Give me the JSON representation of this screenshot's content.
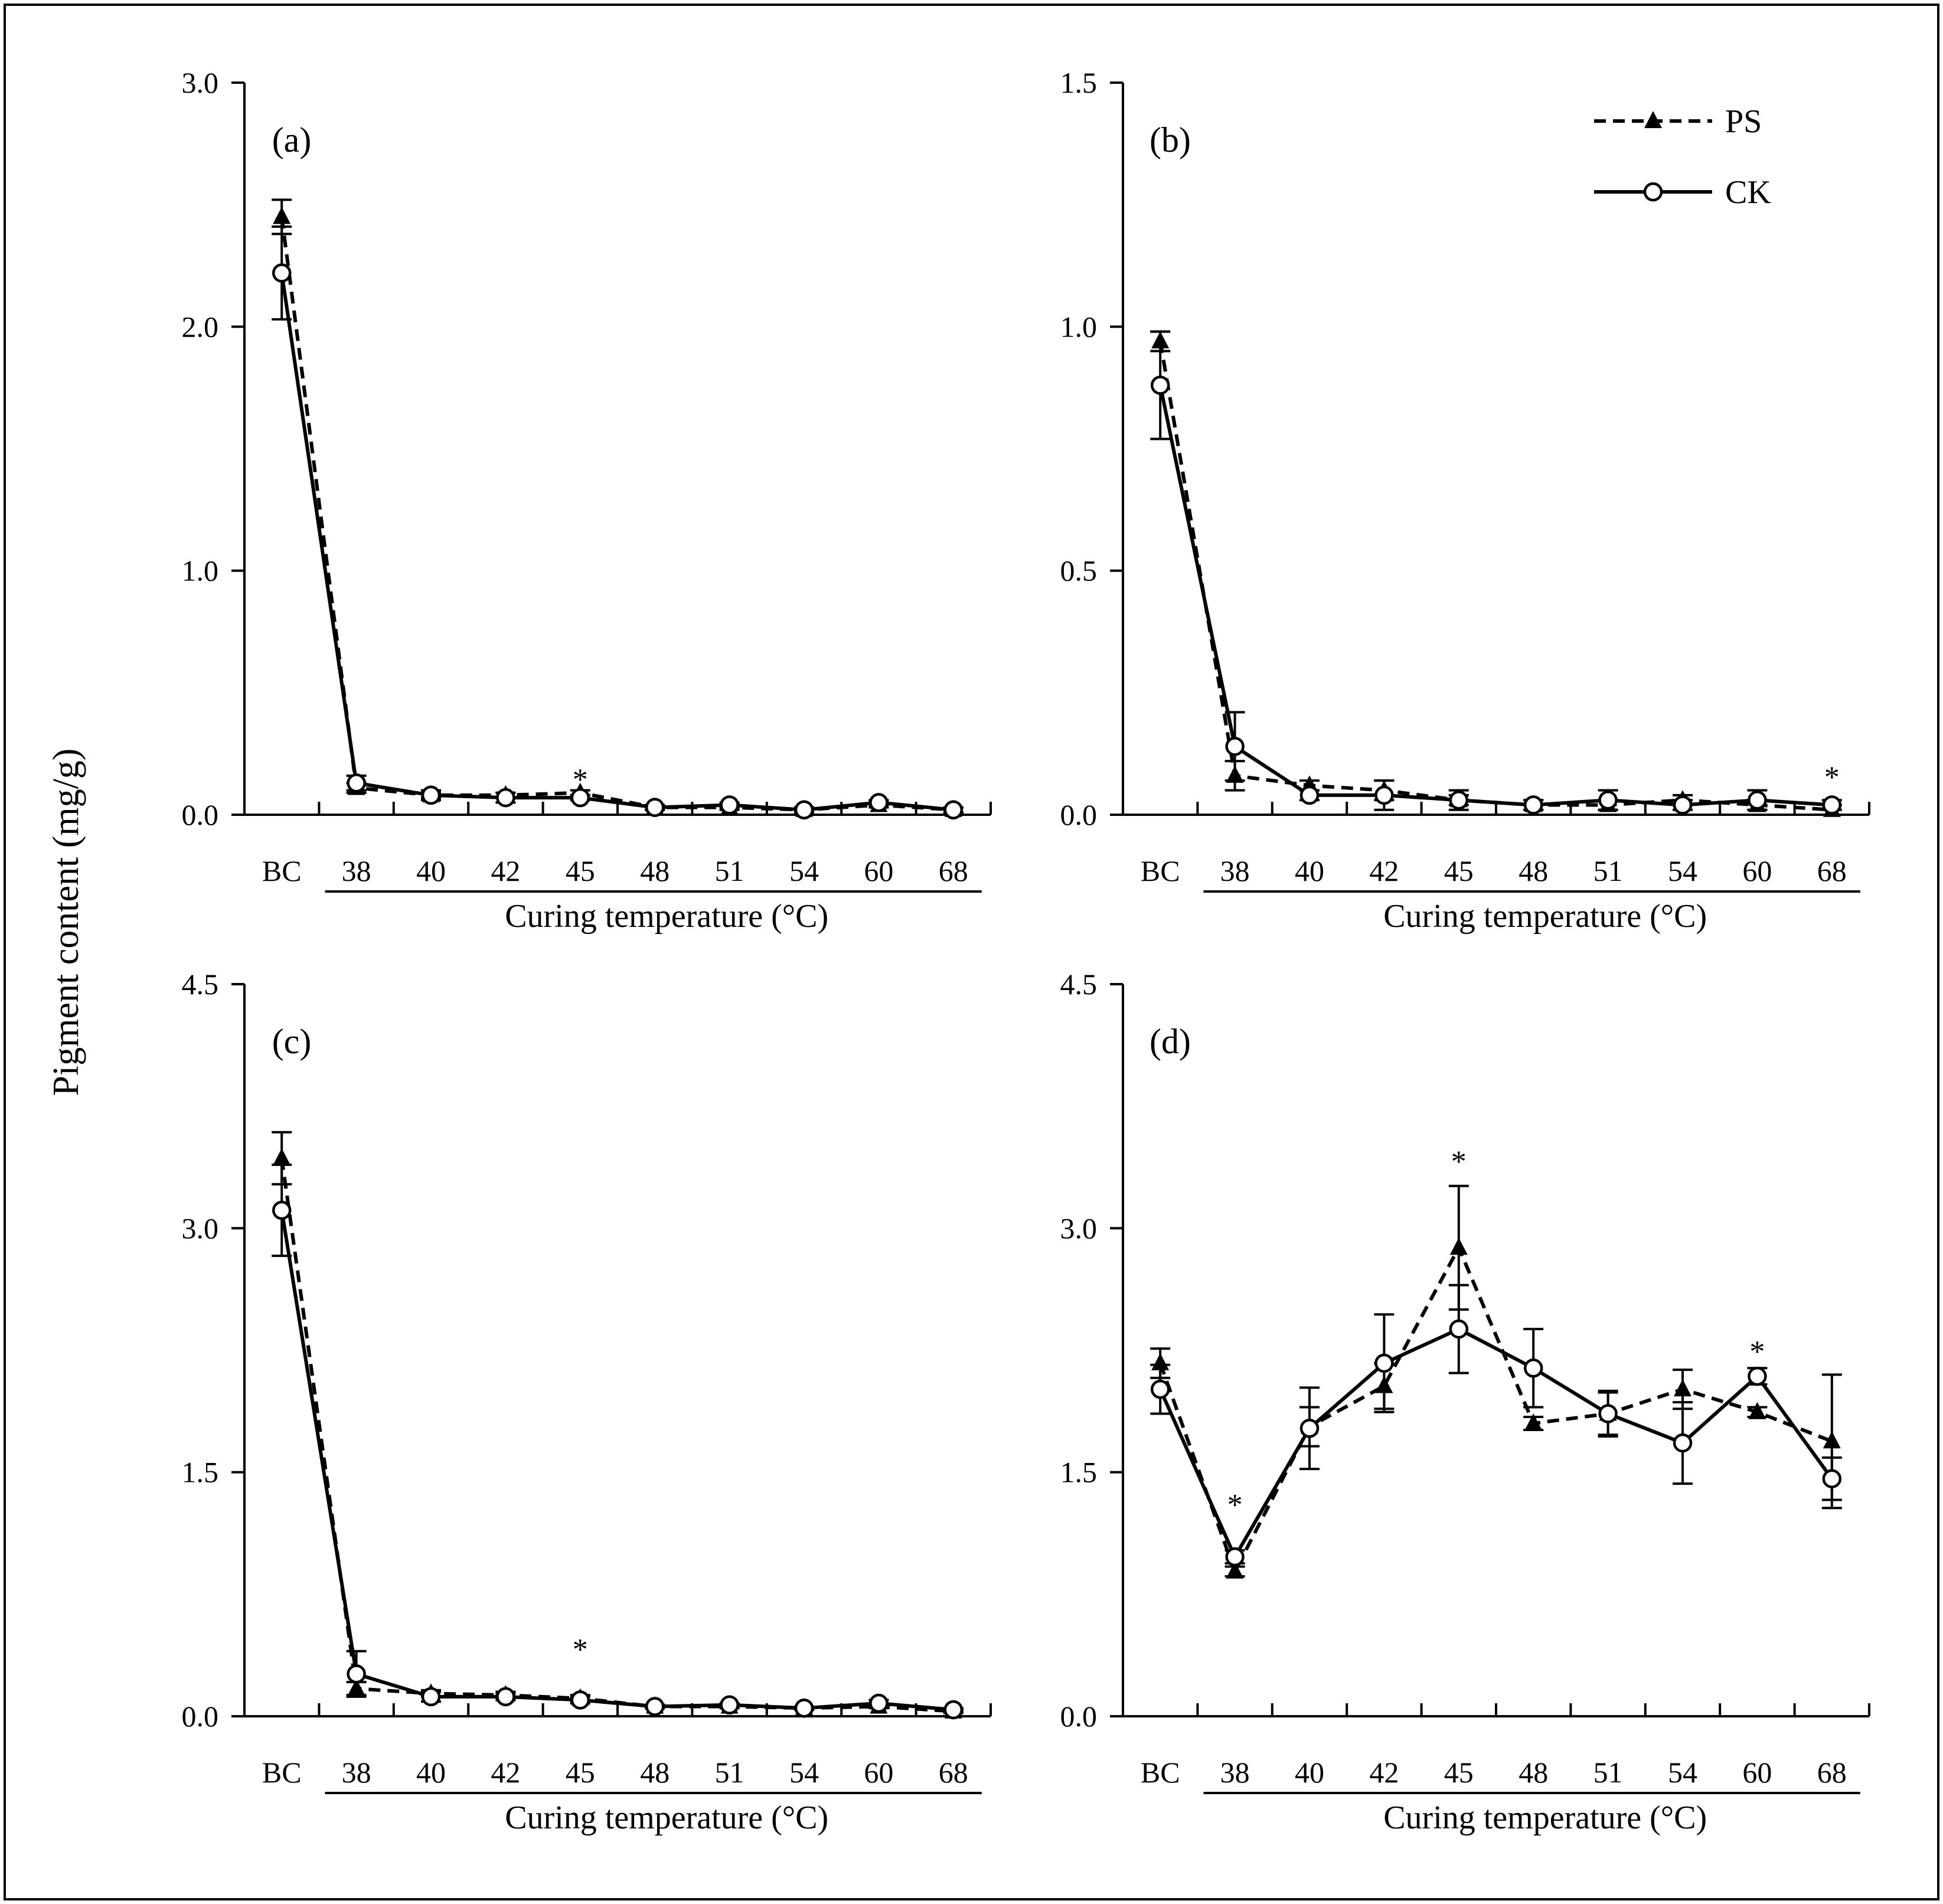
{
  "figure": {
    "y_axis_label": "Pigment content (mg/g)"
  },
  "legend": [
    {
      "name": "PS",
      "style": "dashed",
      "marker": "filled-triangle"
    },
    {
      "name": "CK",
      "style": "solid",
      "marker": "open-circle"
    }
  ],
  "chart_data": [
    {
      "type": "line",
      "panel": "(a)",
      "title": "(a)",
      "xlabel": "Curing temperature (°C)",
      "ylabel": "Pigment content (mg/g)",
      "categories": [
        "BC",
        "38",
        "40",
        "42",
        "45",
        "48",
        "51",
        "54",
        "60",
        "68"
      ],
      "underlined_categories": [
        "38",
        "40",
        "42",
        "45",
        "48",
        "51",
        "54",
        "60",
        "68"
      ],
      "ylim": [
        0,
        3
      ],
      "yticks": [
        "0.0",
        "1.0",
        "2.0",
        "3.0"
      ],
      "ytick_values": [
        0,
        1,
        2,
        3
      ],
      "series": [
        {
          "name": "PS",
          "values": [
            2.45,
            0.11,
            0.08,
            0.08,
            0.09,
            0.03,
            0.03,
            0.02,
            0.04,
            0.02
          ],
          "errors": [
            0.07,
            0.02,
            0.01,
            0.01,
            0.01,
            0.01,
            0.01,
            0.01,
            0.01,
            0.01
          ]
        },
        {
          "name": "CK",
          "values": [
            2.22,
            0.13,
            0.08,
            0.07,
            0.07,
            0.03,
            0.04,
            0.02,
            0.05,
            0.02
          ],
          "errors": [
            0.19,
            0.03,
            0.02,
            0.02,
            0.01,
            0.01,
            0.01,
            0.01,
            0.01,
            0.01
          ]
        }
      ],
      "significance": [
        {
          "category": "45",
          "label": "*",
          "y": 0.17
        }
      ]
    },
    {
      "type": "line",
      "panel": "(b)",
      "title": "(b)",
      "xlabel": "Curing temperature (°C)",
      "ylabel": "",
      "categories": [
        "BC",
        "38",
        "40",
        "42",
        "45",
        "48",
        "51",
        "54",
        "60",
        "68"
      ],
      "underlined_categories": [
        "38",
        "40",
        "42",
        "45",
        "48",
        "51",
        "54",
        "60",
        "68"
      ],
      "ylim": [
        0,
        1.5
      ],
      "yticks": [
        "0.0",
        "0.5",
        "1.0",
        "1.5"
      ],
      "ytick_values": [
        0,
        0.5,
        1.0,
        1.5
      ],
      "series": [
        {
          "name": "PS",
          "values": [
            0.97,
            0.08,
            0.06,
            0.05,
            0.03,
            0.02,
            0.02,
            0.03,
            0.02,
            0.01
          ],
          "errors": [
            0.02,
            0.03,
            0.01,
            0.02,
            0.02,
            0.01,
            0.01,
            0.01,
            0.01,
            0.01
          ]
        },
        {
          "name": "CK",
          "values": [
            0.88,
            0.14,
            0.04,
            0.04,
            0.03,
            0.02,
            0.03,
            0.02,
            0.03,
            0.02
          ],
          "errors": [
            0.11,
            0.07,
            0.01,
            0.03,
            0.01,
            0.01,
            0.02,
            0.01,
            0.02,
            0.01
          ]
        }
      ],
      "significance": [
        {
          "category": "68",
          "label": "*",
          "y": 0.09
        }
      ]
    },
    {
      "type": "line",
      "panel": "(c)",
      "title": "(c)",
      "xlabel": "Curing temperature (°C)",
      "ylabel": "",
      "categories": [
        "BC",
        "38",
        "40",
        "42",
        "45",
        "48",
        "51",
        "54",
        "60",
        "68"
      ],
      "underlined_categories": [
        "38",
        "40",
        "42",
        "45",
        "48",
        "51",
        "54",
        "60",
        "68"
      ],
      "ylim": [
        0,
        4.5
      ],
      "yticks": [
        "0.0",
        "1.5",
        "3.0",
        "4.5"
      ],
      "ytick_values": [
        0,
        1.5,
        3.0,
        4.5
      ],
      "series": [
        {
          "name": "PS",
          "values": [
            3.43,
            0.17,
            0.14,
            0.13,
            0.11,
            0.06,
            0.06,
            0.05,
            0.06,
            0.03
          ],
          "errors": [
            0.16,
            0.04,
            0.02,
            0.02,
            0.02,
            0.01,
            0.01,
            0.01,
            0.01,
            0.01
          ]
        },
        {
          "name": "CK",
          "values": [
            3.11,
            0.26,
            0.12,
            0.12,
            0.1,
            0.06,
            0.07,
            0.05,
            0.08,
            0.04
          ],
          "errors": [
            0.28,
            0.14,
            0.03,
            0.02,
            0.02,
            0.01,
            0.01,
            0.01,
            0.02,
            0.01
          ]
        }
      ],
      "significance": [
        {
          "category": "45",
          "label": "*",
          "y": 0.45
        }
      ]
    },
    {
      "type": "line",
      "panel": "(d)",
      "title": "(d)",
      "xlabel": "Curing temperature (°C)",
      "ylabel": "",
      "categories": [
        "BC",
        "38",
        "40",
        "42",
        "45",
        "48",
        "51",
        "54",
        "60",
        "68"
      ],
      "underlined_categories": [
        "38",
        "40",
        "42",
        "45",
        "48",
        "51",
        "54",
        "60",
        "68"
      ],
      "ylim": [
        0,
        4.5
      ],
      "yticks": [
        "0.0",
        "1.5",
        "3.0",
        "4.5"
      ],
      "ytick_values": [
        0,
        1.5,
        3.0,
        4.5
      ],
      "series": [
        {
          "name": "PS",
          "values": [
            2.17,
            0.89,
            1.78,
            2.03,
            2.88,
            1.8,
            1.86,
            2.01,
            1.87,
            1.69
          ],
          "errors": [
            0.09,
            0.03,
            0.12,
            0.14,
            0.38,
            0.04,
            0.13,
            0.12,
            0.03,
            0.41
          ]
        },
        {
          "name": "CK",
          "values": [
            2.01,
            0.98,
            1.77,
            2.17,
            2.38,
            2.14,
            1.86,
            1.68,
            2.09,
            1.46
          ],
          "errors": [
            0.15,
            0.04,
            0.25,
            0.3,
            0.27,
            0.24,
            0.14,
            0.25,
            0.05,
            0.13
          ]
        }
      ],
      "significance": [
        {
          "category": "38",
          "label": "*",
          "y": 1.34
        },
        {
          "category": "45",
          "label": "*",
          "y": 3.45
        },
        {
          "category": "60",
          "label": "*",
          "y": 2.28
        }
      ]
    }
  ]
}
